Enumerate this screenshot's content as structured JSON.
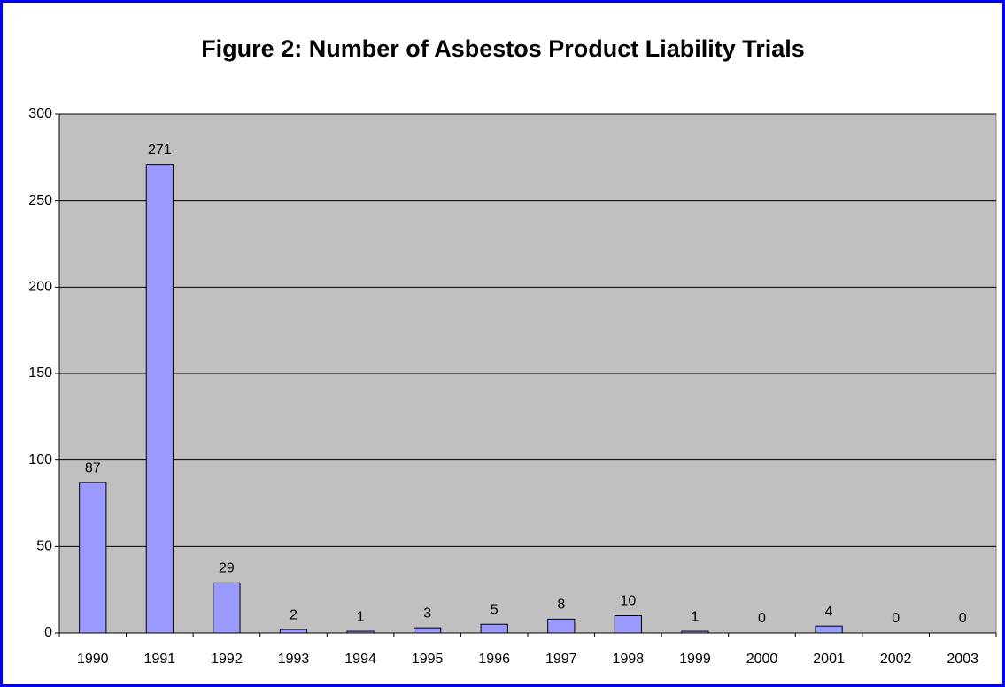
{
  "chart_data": {
    "type": "bar",
    "title": "Figure 2: Number of Asbestos Product Liability Trials",
    "categories": [
      "1990",
      "1991",
      "1992",
      "1993",
      "1994",
      "1995",
      "1996",
      "1997",
      "1998",
      "1999",
      "2000",
      "2001",
      "2002",
      "2003"
    ],
    "values": [
      87,
      271,
      29,
      2,
      1,
      3,
      5,
      8,
      10,
      1,
      0,
      4,
      0,
      0
    ],
    "color": "#9999ff",
    "ylim": [
      0,
      300
    ],
    "yticks": [
      0,
      50,
      100,
      150,
      200,
      250,
      300
    ],
    "grid": true
  }
}
